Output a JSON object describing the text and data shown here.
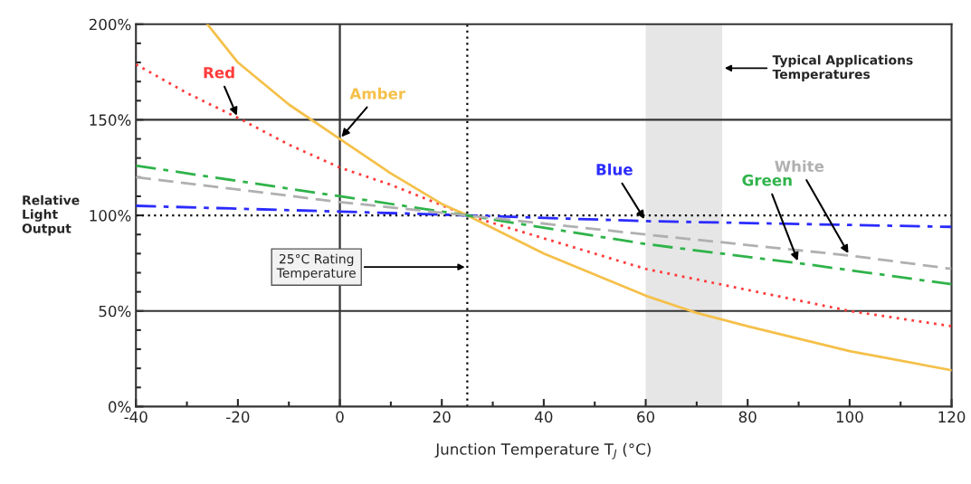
{
  "chart_data": {
    "type": "line",
    "xlabel": "Junction Temperature T$_{J}$ (°C)",
    "ylabel": "Relative\nLight\nOutput",
    "xlim": [
      -40,
      120
    ],
    "xticks": [
      -40,
      -20,
      0,
      20,
      40,
      60,
      80,
      100,
      120
    ],
    "ylim": [
      0,
      200
    ],
    "yticks": [
      {
        "value": 0,
        "label": "0%"
      },
      {
        "value": 50,
        "label": "50%"
      },
      {
        "value": 100,
        "label": "100%"
      },
      {
        "value": 150,
        "label": "150%"
      },
      {
        "value": 200,
        "label": "200%"
      }
    ],
    "grid": false,
    "legend": false,
    "series": [
      {
        "name": "Red",
        "color": "#ff3b3b",
        "line_style": "dotted",
        "x": [
          -40,
          -30,
          -20,
          -10,
          0,
          10,
          25,
          40,
          60,
          80,
          100,
          120
        ],
        "values": [
          179,
          164,
          151,
          137,
          125,
          116,
          100,
          88,
          72,
          61,
          50,
          42
        ]
      },
      {
        "name": "Amber",
        "color": "#f5c04a",
        "line_style": "solid",
        "x": [
          -26,
          -20,
          -10,
          0,
          10,
          20,
          25,
          40,
          60,
          70,
          80,
          100,
          120
        ],
        "values": [
          200,
          180,
          158,
          140,
          122,
          106,
          100,
          80,
          58,
          49,
          42,
          29,
          19
        ]
      },
      {
        "name": "Blue",
        "color": "#2b2bff",
        "line_style": "dashdot",
        "x": [
          -40,
          0,
          25,
          60,
          120
        ],
        "values": [
          105,
          102,
          100,
          97,
          94
        ]
      },
      {
        "name": "Green",
        "color": "#2fb34a",
        "line_style": "dashdot",
        "x": [
          -40,
          0,
          25,
          60,
          90,
          120
        ],
        "values": [
          126,
          110,
          100,
          85,
          75,
          64
        ]
      },
      {
        "name": "White",
        "color": "#b0b0b0",
        "line_style": "dashed",
        "x": [
          -40,
          0,
          25,
          60,
          100,
          120
        ],
        "values": [
          120,
          107,
          100,
          90,
          79,
          72
        ]
      }
    ],
    "ref_lines": [
      {
        "axis": "y",
        "value": 50,
        "color": "#333333",
        "line_style": "solid"
      },
      {
        "axis": "y",
        "value": 150,
        "color": "#333333",
        "line_style": "solid"
      },
      {
        "axis": "y",
        "value": 100,
        "color": "#000000",
        "line_style": "dotted"
      },
      {
        "axis": "x",
        "value": 0,
        "color": "#333333",
        "line_style": "solid"
      },
      {
        "axis": "x",
        "value": 25,
        "color": "#000000",
        "line_style": "dotted",
        "label": "25°C Rating\nTemperature"
      }
    ],
    "bands": [
      {
        "axis": "x",
        "from": 60,
        "to": 75,
        "color": "#e6e6e6",
        "label": "Typical Applications\nTemperatures"
      }
    ]
  }
}
